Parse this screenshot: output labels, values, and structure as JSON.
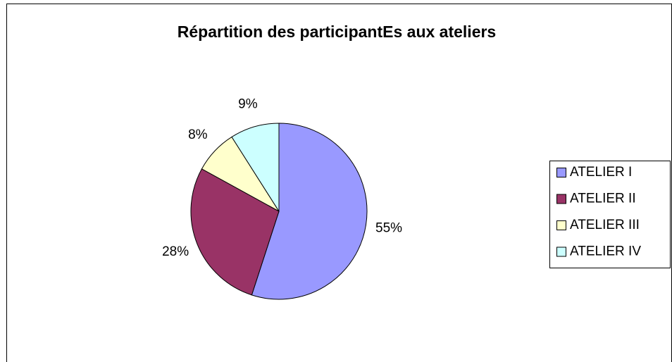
{
  "chart_data": {
    "type": "pie",
    "title": "Répartition des participantEs aux ateliers",
    "categories": [
      "ATELIER I",
      "ATELIER II",
      "ATELIER III",
      "ATELIER IV"
    ],
    "values": [
      55,
      28,
      8,
      9
    ],
    "value_labels": [
      "55%",
      "28%",
      "8%",
      "9%"
    ],
    "colors": [
      "#9999ff",
      "#993366",
      "#ffffcc",
      "#ccffff"
    ],
    "legend": "right"
  }
}
